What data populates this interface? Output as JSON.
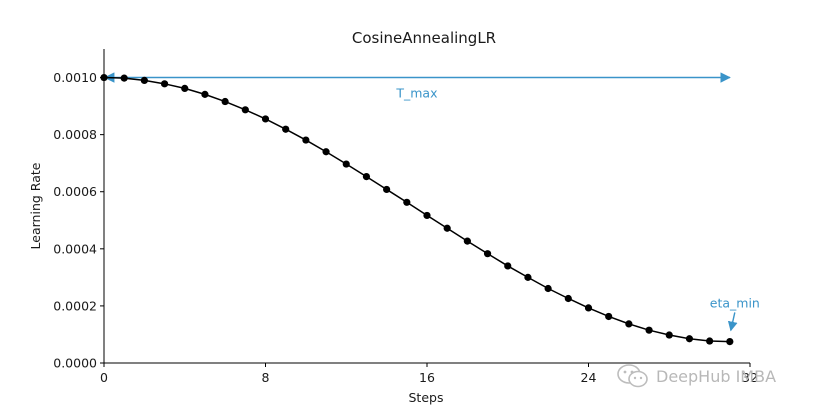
{
  "chart_data": {
    "type": "line",
    "title": "CosineAnnealingLR",
    "xlabel": "Steps",
    "ylabel": "Learning Rate",
    "xlim": [
      0,
      32
    ],
    "ylim": [
      0,
      0.0011
    ],
    "xticks": [
      0,
      8,
      16,
      24,
      32
    ],
    "xtick_labels": [
      "0",
      "8",
      "16",
      "24",
      "32"
    ],
    "yticks": [
      0,
      0.0002,
      0.0004,
      0.0006,
      0.0008,
      0.001
    ],
    "ytick_labels": [
      "0.0000",
      "0.0002",
      "0.0004",
      "0.0006",
      "0.0008",
      "0.0010"
    ],
    "grid": false,
    "series": [
      {
        "name": "",
        "color": "#000000",
        "x": [
          0,
          1,
          2,
          3,
          4,
          5,
          6,
          7,
          8,
          9,
          10,
          11,
          12,
          13,
          14,
          15,
          16,
          17,
          18,
          19,
          20,
          21,
          22,
          23,
          24,
          25,
          26,
          27,
          28,
          29,
          30,
          31
        ],
        "y": [
          0.001,
          0.000998,
          0.00099,
          0.000978,
          0.000962,
          0.000941,
          0.000916,
          0.000887,
          0.000855,
          0.000819,
          0.000781,
          0.00074,
          0.000697,
          0.000653,
          0.000608,
          0.000563,
          0.000517,
          0.000472,
          0.000427,
          0.000383,
          0.00034,
          0.0003,
          0.000261,
          0.000226,
          0.000193,
          0.000163,
          0.000137,
          0.000115,
          9.8e-05,
          8.5e-05,
          7.7e-05,
          7.5e-05
        ]
      }
    ],
    "annotations": [
      {
        "text": "T_max",
        "type": "double-arrow",
        "color": "#3a94c9",
        "x_start": 0,
        "x_end": 31,
        "y": 0.001
      },
      {
        "text": "eta_min",
        "type": "arrow",
        "color": "#3a94c9",
        "target_x": 31,
        "target_y": 0.0001
      }
    ]
  },
  "watermark": {
    "icon": "wechat-icon",
    "text": "DeepHub IMBA"
  }
}
